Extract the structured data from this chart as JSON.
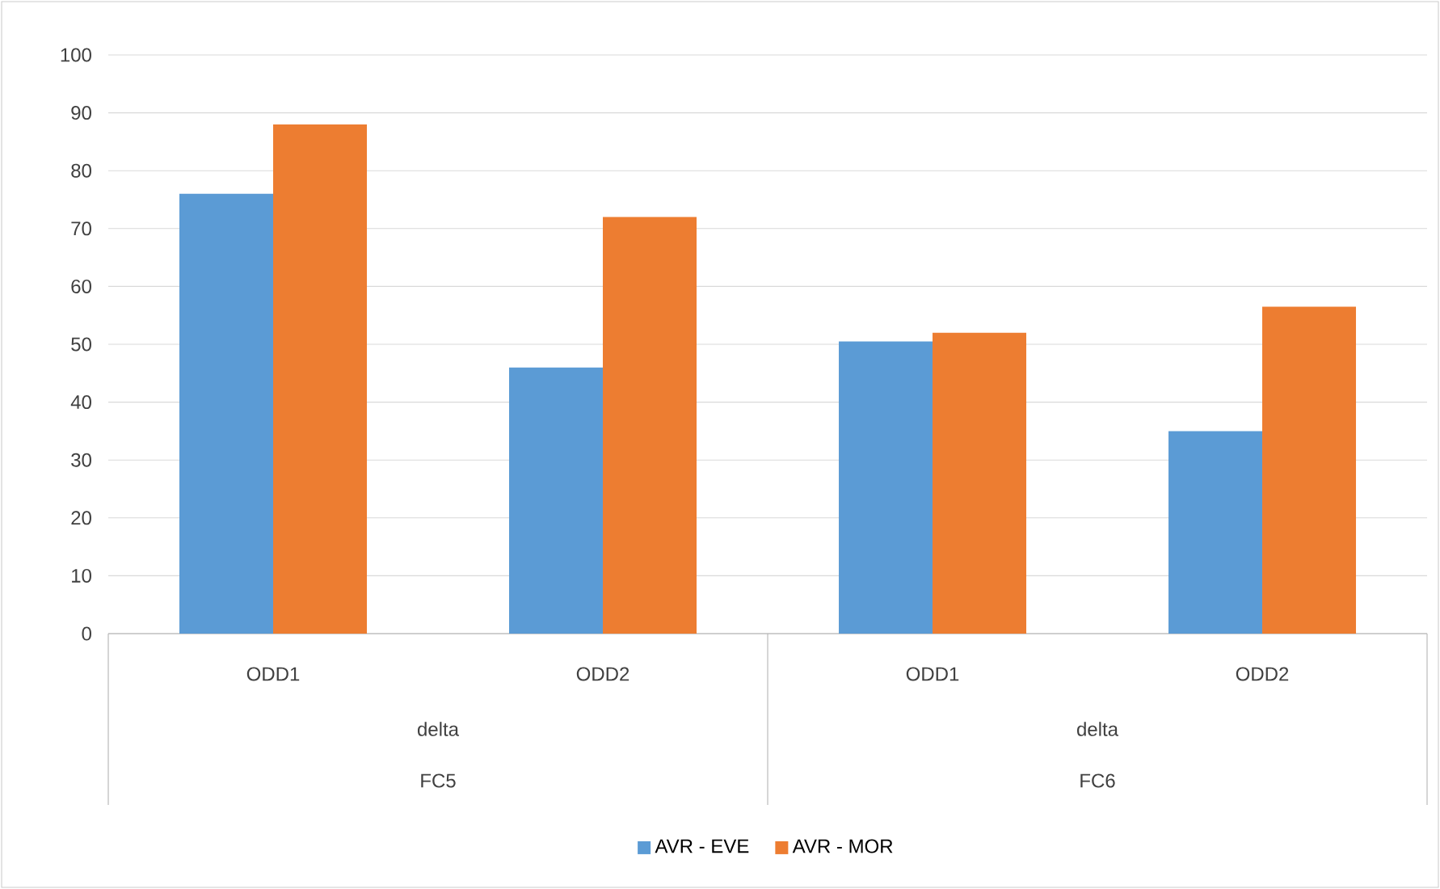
{
  "chart_data": {
    "type": "bar",
    "categories": [
      "ODD1",
      "ODD2",
      "ODD1",
      "ODD2"
    ],
    "series": [
      {
        "name": "AVR - EVE",
        "color": "#5b9bd5",
        "values": [
          76,
          46,
          50.5,
          35
        ]
      },
      {
        "name": "AVR - MOR",
        "color": "#ed7d31",
        "values": [
          88,
          72,
          52,
          56.5
        ]
      }
    ],
    "ylim": [
      0,
      100
    ],
    "yticks": [
      0,
      10,
      20,
      30,
      40,
      50,
      60,
      70,
      80,
      90,
      100
    ],
    "grid": "y",
    "legend": "bottom",
    "annotations": [
      "delta",
      "delta",
      "FC5",
      "FC6"
    ]
  }
}
